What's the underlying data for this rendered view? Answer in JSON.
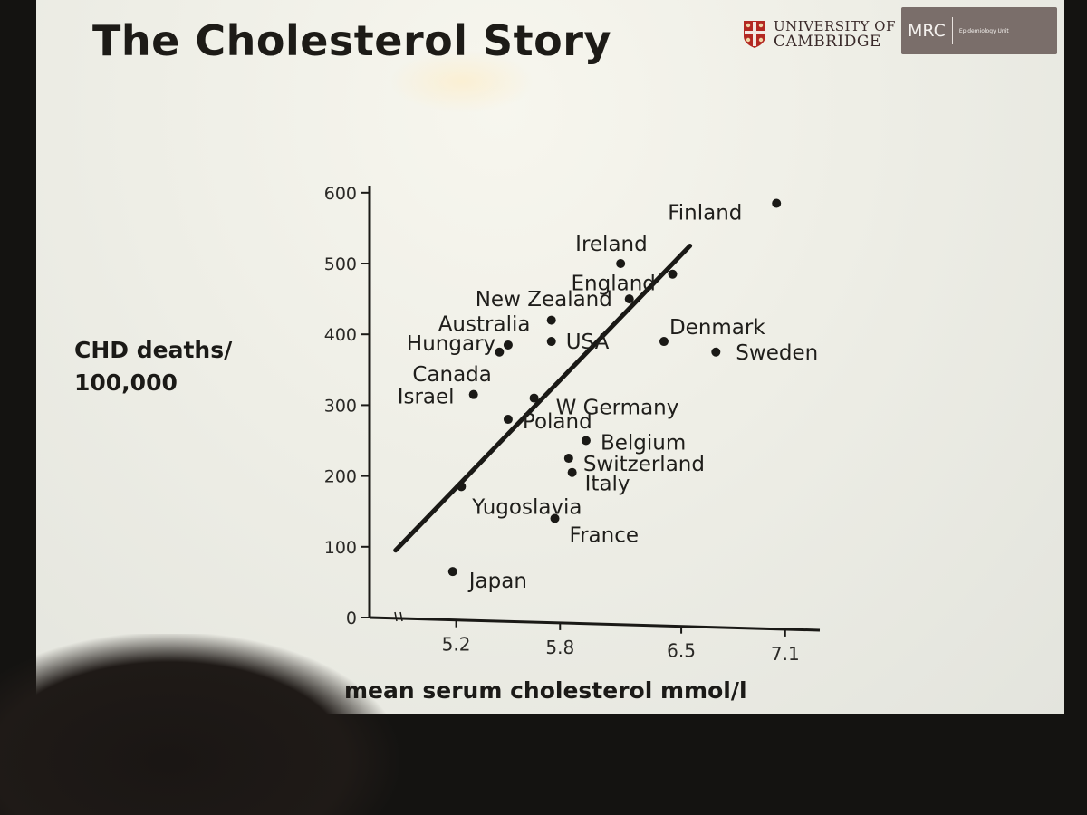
{
  "slide": {
    "title": "The Cholesterol Story",
    "logos": {
      "university_line1": "UNIVERSITY OF",
      "university_line2": "CAMBRIDGE",
      "mrc": "MRC",
      "mrc_sub": "Epidemiology Unit"
    }
  },
  "chart_data": {
    "type": "scatter",
    "ylabel_lines": [
      "CHD deaths/",
      "100,000"
    ],
    "xlabel": "mean serum cholesterol mmol/l",
    "x_ticks": [
      "5.2",
      "5.8",
      "6.5",
      "7.1"
    ],
    "y_ticks": [
      "0",
      "100",
      "200",
      "300",
      "400",
      "500",
      "600"
    ],
    "xlim": [
      4.7,
      7.3
    ],
    "ylim": [
      0,
      610
    ],
    "points": [
      {
        "label": "Finland",
        "x": 7.05,
        "y": 585
      },
      {
        "label": "Ireland",
        "x": 6.15,
        "y": 500
      },
      {
        "label": "England",
        "x": 6.45,
        "y": 485
      },
      {
        "label": "New Zealand",
        "x": 6.2,
        "y": 450
      },
      {
        "label": "Australia",
        "x": 5.75,
        "y": 420
      },
      {
        "label": "USA",
        "x": 5.75,
        "y": 390
      },
      {
        "label": "Denmark",
        "x": 6.4,
        "y": 390
      },
      {
        "label": "Hungary",
        "x": 5.5,
        "y": 385
      },
      {
        "label": "Canada",
        "x": 5.45,
        "y": 375
      },
      {
        "label": "Sweden",
        "x": 6.7,
        "y": 375
      },
      {
        "label": "Israel",
        "x": 5.3,
        "y": 315
      },
      {
        "label": "W Germany",
        "x": 5.65,
        "y": 310
      },
      {
        "label": "Poland",
        "x": 5.5,
        "y": 280
      },
      {
        "label": "Belgium",
        "x": 5.95,
        "y": 250
      },
      {
        "label": "Switzerland",
        "x": 5.85,
        "y": 225
      },
      {
        "label": "Italy",
        "x": 5.87,
        "y": 205
      },
      {
        "label": "Yugoslavia",
        "x": 5.23,
        "y": 185
      },
      {
        "label": "France",
        "x": 5.77,
        "y": 140
      },
      {
        "label": "Japan",
        "x": 5.18,
        "y": 65
      }
    ],
    "trendline": {
      "x": [
        4.85,
        6.55
      ],
      "y": [
        95,
        525
      ]
    },
    "grid": false,
    "legend": "none"
  }
}
